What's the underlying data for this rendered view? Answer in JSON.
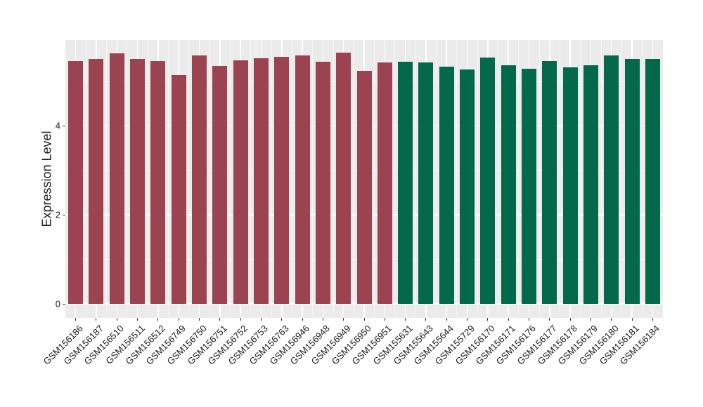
{
  "figure": {
    "background": "#FFFFFF",
    "panel_background": "#EBEBEB",
    "grid_major_color": "#FFFFFF",
    "grid_minor_color": "rgba(255,255,255,0.55)",
    "axis_text_color": "#1A1A1A",
    "tick_mark_color": "#333333"
  },
  "chart_data": {
    "type": "bar",
    "title": "",
    "xlabel": "",
    "ylabel": "Expression Level",
    "ylim": [
      0,
      5.93
    ],
    "y_major_ticks": [
      0,
      2,
      4
    ],
    "y_minor_ticks": [
      1,
      3,
      5
    ],
    "grid": true,
    "legend_position": "none",
    "group_colors": {
      "group1": "#9B4351",
      "group2": "#04684A"
    },
    "categories": [
      "GSM156186",
      "GSM156187",
      "GSM156510",
      "GSM156511",
      "GSM156512",
      "GSM156749",
      "GSM156750",
      "GSM156751",
      "GSM156752",
      "GSM156753",
      "GSM156763",
      "GSM156946",
      "GSM156948",
      "GSM156949",
      "GSM156950",
      "GSM156951",
      "GSM155631",
      "GSM155643",
      "GSM155644",
      "GSM155729",
      "GSM156170",
      "GSM156171",
      "GSM156176",
      "GSM156177",
      "GSM156178",
      "GSM156179",
      "GSM156180",
      "GSM156181",
      "GSM156184"
    ],
    "values": [
      5.46,
      5.5,
      5.63,
      5.51,
      5.46,
      5.15,
      5.58,
      5.34,
      5.47,
      5.52,
      5.56,
      5.58,
      5.44,
      5.65,
      5.24,
      5.42,
      5.44,
      5.42,
      5.33,
      5.27,
      5.53,
      5.37,
      5.29,
      5.45,
      5.31,
      5.36,
      5.59,
      5.5,
      5.51
    ],
    "bar_groups": [
      "group1",
      "group1",
      "group1",
      "group1",
      "group1",
      "group1",
      "group1",
      "group1",
      "group1",
      "group1",
      "group1",
      "group1",
      "group1",
      "group1",
      "group1",
      "group1",
      "group2",
      "group2",
      "group2",
      "group2",
      "group2",
      "group2",
      "group2",
      "group2",
      "group2",
      "group2",
      "group2",
      "group2",
      "group2"
    ]
  }
}
